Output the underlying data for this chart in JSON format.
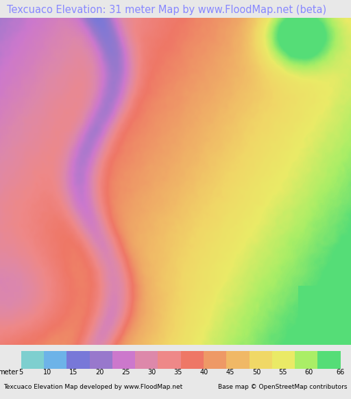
{
  "title": "Texcuaco Elevation: 31 meter Map by www.FloodMap.net (beta)",
  "title_color": "#8888ff",
  "title_fontsize": 10.5,
  "bg_color": "#e8e8e8",
  "map_bg": "#e8e8e8",
  "colorbar_colors": [
    "#7ecfcf",
    "#6db3e8",
    "#7878d8",
    "#9878cc",
    "#cc78cc",
    "#dd88aa",
    "#ee8888",
    "#ee7766",
    "#ee9966",
    "#f0b866",
    "#f0d866",
    "#eaea66",
    "#aaee66",
    "#55dd77"
  ],
  "colorbar_ticks": [
    5,
    10,
    15,
    20,
    25,
    30,
    35,
    40,
    45,
    50,
    55,
    60,
    66
  ],
  "colorbar_label": "meter",
  "footer_left": "Texcuaco Elevation Map developed by www.FloodMap.net",
  "footer_right": "Base map © OpenStreetMap contributors",
  "footer_fontsize": 6.5,
  "seed": 42
}
